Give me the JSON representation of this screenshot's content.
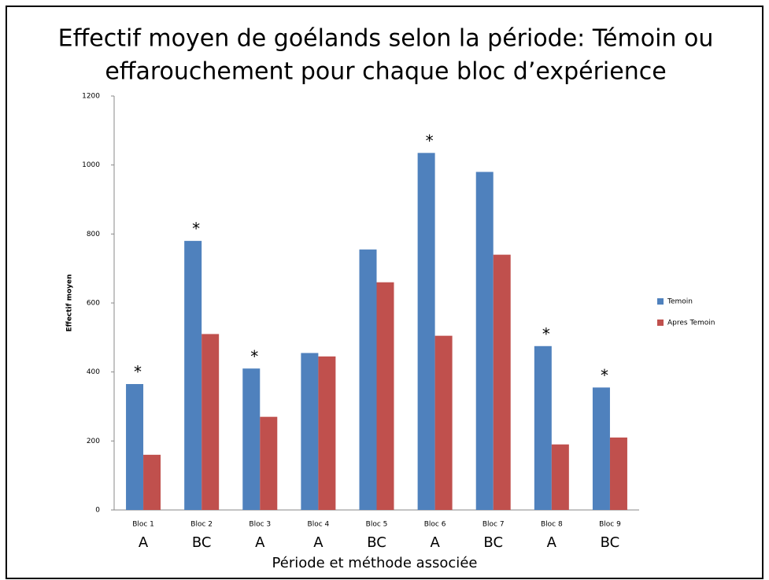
{
  "chart_data": {
    "type": "bar",
    "title": "Effectif moyen de goélands selon la période: Témoin ou",
    "subtitle": "effarouchement pour chaque bloc d’expérience",
    "y_label": "Effectif moyen",
    "x_label": "Période et méthode associée",
    "categories": [
      "Bloc 1",
      "Bloc 2",
      "Bloc 3",
      "Bloc 4",
      "Bloc 5",
      "Bloc 6",
      "Bloc 7",
      "Bloc 8",
      "Bloc 9"
    ],
    "methods": [
      "A",
      "BC",
      "A",
      "A",
      "BC",
      "A",
      "BC",
      "A",
      "BC"
    ],
    "annotations": [
      "*",
      "*",
      "*",
      null,
      null,
      "*",
      null,
      "*",
      "*"
    ],
    "series": [
      {
        "name": "Temoin",
        "color": "#4f81bd",
        "values": [
          365,
          780,
          410,
          455,
          755,
          1035,
          980,
          475,
          355
        ]
      },
      {
        "name": "Apres Temoin",
        "color": "#c0504d",
        "values": [
          160,
          510,
          270,
          445,
          660,
          505,
          740,
          190,
          210
        ]
      }
    ],
    "ylim": [
      0,
      1200
    ],
    "yticks": [
      0,
      200,
      400,
      600,
      800,
      1000,
      1200
    ],
    "legend": "right"
  }
}
